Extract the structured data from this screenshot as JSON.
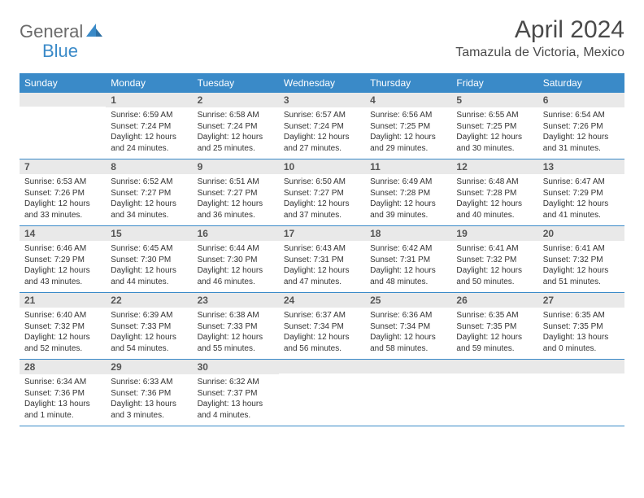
{
  "logo": {
    "general": "General",
    "blue": "Blue"
  },
  "title": "April 2024",
  "location": "Tamazula de Victoria, Mexico",
  "colors": {
    "header_bg": "#3a8ac8",
    "header_text": "#ffffff",
    "daynum_bg": "#e9e9e9",
    "row_border": "#3a8ac8",
    "logo_general": "#6b6b6b",
    "logo_blue": "#3a8ac8",
    "background": "#ffffff"
  },
  "daysOfWeek": [
    "Sunday",
    "Monday",
    "Tuesday",
    "Wednesday",
    "Thursday",
    "Friday",
    "Saturday"
  ],
  "weeks": [
    [
      {
        "n": "",
        "sr": "",
        "ss": "",
        "dl": ""
      },
      {
        "n": "1",
        "sr": "Sunrise: 6:59 AM",
        "ss": "Sunset: 7:24 PM",
        "dl": "Daylight: 12 hours and 24 minutes."
      },
      {
        "n": "2",
        "sr": "Sunrise: 6:58 AM",
        "ss": "Sunset: 7:24 PM",
        "dl": "Daylight: 12 hours and 25 minutes."
      },
      {
        "n": "3",
        "sr": "Sunrise: 6:57 AM",
        "ss": "Sunset: 7:24 PM",
        "dl": "Daylight: 12 hours and 27 minutes."
      },
      {
        "n": "4",
        "sr": "Sunrise: 6:56 AM",
        "ss": "Sunset: 7:25 PM",
        "dl": "Daylight: 12 hours and 29 minutes."
      },
      {
        "n": "5",
        "sr": "Sunrise: 6:55 AM",
        "ss": "Sunset: 7:25 PM",
        "dl": "Daylight: 12 hours and 30 minutes."
      },
      {
        "n": "6",
        "sr": "Sunrise: 6:54 AM",
        "ss": "Sunset: 7:26 PM",
        "dl": "Daylight: 12 hours and 31 minutes."
      }
    ],
    [
      {
        "n": "7",
        "sr": "Sunrise: 6:53 AM",
        "ss": "Sunset: 7:26 PM",
        "dl": "Daylight: 12 hours and 33 minutes."
      },
      {
        "n": "8",
        "sr": "Sunrise: 6:52 AM",
        "ss": "Sunset: 7:27 PM",
        "dl": "Daylight: 12 hours and 34 minutes."
      },
      {
        "n": "9",
        "sr": "Sunrise: 6:51 AM",
        "ss": "Sunset: 7:27 PM",
        "dl": "Daylight: 12 hours and 36 minutes."
      },
      {
        "n": "10",
        "sr": "Sunrise: 6:50 AM",
        "ss": "Sunset: 7:27 PM",
        "dl": "Daylight: 12 hours and 37 minutes."
      },
      {
        "n": "11",
        "sr": "Sunrise: 6:49 AM",
        "ss": "Sunset: 7:28 PM",
        "dl": "Daylight: 12 hours and 39 minutes."
      },
      {
        "n": "12",
        "sr": "Sunrise: 6:48 AM",
        "ss": "Sunset: 7:28 PM",
        "dl": "Daylight: 12 hours and 40 minutes."
      },
      {
        "n": "13",
        "sr": "Sunrise: 6:47 AM",
        "ss": "Sunset: 7:29 PM",
        "dl": "Daylight: 12 hours and 41 minutes."
      }
    ],
    [
      {
        "n": "14",
        "sr": "Sunrise: 6:46 AM",
        "ss": "Sunset: 7:29 PM",
        "dl": "Daylight: 12 hours and 43 minutes."
      },
      {
        "n": "15",
        "sr": "Sunrise: 6:45 AM",
        "ss": "Sunset: 7:30 PM",
        "dl": "Daylight: 12 hours and 44 minutes."
      },
      {
        "n": "16",
        "sr": "Sunrise: 6:44 AM",
        "ss": "Sunset: 7:30 PM",
        "dl": "Daylight: 12 hours and 46 minutes."
      },
      {
        "n": "17",
        "sr": "Sunrise: 6:43 AM",
        "ss": "Sunset: 7:31 PM",
        "dl": "Daylight: 12 hours and 47 minutes."
      },
      {
        "n": "18",
        "sr": "Sunrise: 6:42 AM",
        "ss": "Sunset: 7:31 PM",
        "dl": "Daylight: 12 hours and 48 minutes."
      },
      {
        "n": "19",
        "sr": "Sunrise: 6:41 AM",
        "ss": "Sunset: 7:32 PM",
        "dl": "Daylight: 12 hours and 50 minutes."
      },
      {
        "n": "20",
        "sr": "Sunrise: 6:41 AM",
        "ss": "Sunset: 7:32 PM",
        "dl": "Daylight: 12 hours and 51 minutes."
      }
    ],
    [
      {
        "n": "21",
        "sr": "Sunrise: 6:40 AM",
        "ss": "Sunset: 7:32 PM",
        "dl": "Daylight: 12 hours and 52 minutes."
      },
      {
        "n": "22",
        "sr": "Sunrise: 6:39 AM",
        "ss": "Sunset: 7:33 PM",
        "dl": "Daylight: 12 hours and 54 minutes."
      },
      {
        "n": "23",
        "sr": "Sunrise: 6:38 AM",
        "ss": "Sunset: 7:33 PM",
        "dl": "Daylight: 12 hours and 55 minutes."
      },
      {
        "n": "24",
        "sr": "Sunrise: 6:37 AM",
        "ss": "Sunset: 7:34 PM",
        "dl": "Daylight: 12 hours and 56 minutes."
      },
      {
        "n": "25",
        "sr": "Sunrise: 6:36 AM",
        "ss": "Sunset: 7:34 PM",
        "dl": "Daylight: 12 hours and 58 minutes."
      },
      {
        "n": "26",
        "sr": "Sunrise: 6:35 AM",
        "ss": "Sunset: 7:35 PM",
        "dl": "Daylight: 12 hours and 59 minutes."
      },
      {
        "n": "27",
        "sr": "Sunrise: 6:35 AM",
        "ss": "Sunset: 7:35 PM",
        "dl": "Daylight: 13 hours and 0 minutes."
      }
    ],
    [
      {
        "n": "28",
        "sr": "Sunrise: 6:34 AM",
        "ss": "Sunset: 7:36 PM",
        "dl": "Daylight: 13 hours and 1 minute."
      },
      {
        "n": "29",
        "sr": "Sunrise: 6:33 AM",
        "ss": "Sunset: 7:36 PM",
        "dl": "Daylight: 13 hours and 3 minutes."
      },
      {
        "n": "30",
        "sr": "Sunrise: 6:32 AM",
        "ss": "Sunset: 7:37 PM",
        "dl": "Daylight: 13 hours and 4 minutes."
      },
      {
        "n": "",
        "sr": "",
        "ss": "",
        "dl": ""
      },
      {
        "n": "",
        "sr": "",
        "ss": "",
        "dl": ""
      },
      {
        "n": "",
        "sr": "",
        "ss": "",
        "dl": ""
      },
      {
        "n": "",
        "sr": "",
        "ss": "",
        "dl": ""
      }
    ]
  ]
}
